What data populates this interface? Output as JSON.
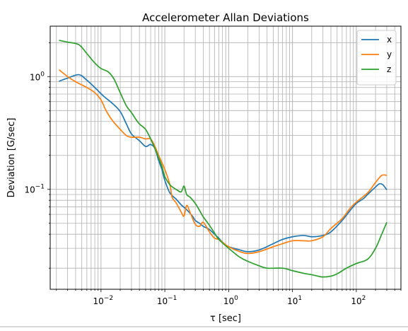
{
  "chart_data": {
    "type": "line",
    "title": "Accelerometer Allan Deviations",
    "xlabel": "τ [sec]",
    "ylabel": "Deviation [G/sec]",
    "xscale": "log",
    "yscale": "log",
    "xlim": [
      0.0016,
      500
    ],
    "ylim": [
      0.013,
      2.8
    ],
    "x_ticks": [
      {
        "value": 0.01,
        "base": "10",
        "exp": "−2"
      },
      {
        "value": 0.1,
        "base": "10",
        "exp": "−1"
      },
      {
        "value": 1,
        "base": "10",
        "exp": "0"
      },
      {
        "value": 10,
        "base": "10",
        "exp": "1"
      },
      {
        "value": 100,
        "base": "10",
        "exp": "2"
      }
    ],
    "y_ticks": [
      {
        "value": 0.1,
        "base": "10",
        "exp": "−1"
      },
      {
        "value": 1,
        "base": "10",
        "exp": "0"
      }
    ],
    "grid": true,
    "legend_position": "top-right",
    "series": [
      {
        "name": "x",
        "color": "#1f77b4",
        "points": [
          [
            0.0022,
            0.91
          ],
          [
            0.003,
            0.97
          ],
          [
            0.0045,
            1.04
          ],
          [
            0.006,
            0.93
          ],
          [
            0.008,
            0.8
          ],
          [
            0.011,
            0.67
          ],
          [
            0.015,
            0.58
          ],
          [
            0.02,
            0.49
          ],
          [
            0.025,
            0.38
          ],
          [
            0.03,
            0.31
          ],
          [
            0.04,
            0.27
          ],
          [
            0.05,
            0.24
          ],
          [
            0.06,
            0.25
          ],
          [
            0.07,
            0.23
          ],
          [
            0.08,
            0.18
          ],
          [
            0.09,
            0.15
          ],
          [
            0.1,
            0.12
          ],
          [
            0.12,
            0.093
          ],
          [
            0.15,
            0.082
          ],
          [
            0.18,
            0.073
          ],
          [
            0.22,
            0.066
          ],
          [
            0.27,
            0.058
          ],
          [
            0.3,
            0.053
          ],
          [
            0.35,
            0.05
          ],
          [
            0.4,
            0.047
          ],
          [
            0.5,
            0.044
          ],
          [
            0.6,
            0.04
          ],
          [
            0.7,
            0.037
          ],
          [
            0.8,
            0.034
          ],
          [
            1,
            0.031
          ],
          [
            1.5,
            0.029
          ],
          [
            2,
            0.028
          ],
          [
            3,
            0.029
          ],
          [
            5,
            0.033
          ],
          [
            7,
            0.036
          ],
          [
            10,
            0.038
          ],
          [
            15,
            0.039
          ],
          [
            20,
            0.038
          ],
          [
            30,
            0.039
          ],
          [
            40,
            0.042
          ],
          [
            60,
            0.053
          ],
          [
            80,
            0.065
          ],
          [
            100,
            0.075
          ],
          [
            130,
            0.083
          ],
          [
            150,
            0.09
          ],
          [
            200,
            0.105
          ],
          [
            230,
            0.112
          ],
          [
            260,
            0.11
          ],
          [
            300,
            0.099
          ]
        ]
      },
      {
        "name": "y",
        "color": "#ff7f0e",
        "points": [
          [
            0.0022,
            1.15
          ],
          [
            0.003,
            1.0
          ],
          [
            0.004,
            0.9
          ],
          [
            0.006,
            0.8
          ],
          [
            0.008,
            0.72
          ],
          [
            0.01,
            0.62
          ],
          [
            0.012,
            0.5
          ],
          [
            0.015,
            0.41
          ],
          [
            0.02,
            0.34
          ],
          [
            0.025,
            0.3
          ],
          [
            0.03,
            0.29
          ],
          [
            0.04,
            0.29
          ],
          [
            0.05,
            0.28
          ],
          [
            0.06,
            0.28
          ],
          [
            0.07,
            0.24
          ],
          [
            0.08,
            0.2
          ],
          [
            0.1,
            0.15
          ],
          [
            0.12,
            0.11
          ],
          [
            0.13,
            0.085
          ],
          [
            0.15,
            0.076
          ],
          [
            0.18,
            0.063
          ],
          [
            0.2,
            0.058
          ],
          [
            0.22,
            0.072
          ],
          [
            0.25,
            0.062
          ],
          [
            0.3,
            0.049
          ],
          [
            0.35,
            0.047
          ],
          [
            0.4,
            0.051
          ],
          [
            0.5,
            0.042
          ],
          [
            0.6,
            0.037
          ],
          [
            0.7,
            0.036
          ],
          [
            0.8,
            0.034
          ],
          [
            1,
            0.031
          ],
          [
            1.5,
            0.028
          ],
          [
            2,
            0.027
          ],
          [
            3,
            0.028
          ],
          [
            5,
            0.031
          ],
          [
            7,
            0.033
          ],
          [
            10,
            0.035
          ],
          [
            15,
            0.035
          ],
          [
            20,
            0.035
          ],
          [
            30,
            0.038
          ],
          [
            40,
            0.045
          ],
          [
            60,
            0.055
          ],
          [
            80,
            0.068
          ],
          [
            100,
            0.077
          ],
          [
            150,
            0.093
          ],
          [
            200,
            0.115
          ],
          [
            250,
            0.133
          ],
          [
            300,
            0.133
          ]
        ]
      },
      {
        "name": "z",
        "color": "#2ca02c",
        "points": [
          [
            0.0022,
            2.1
          ],
          [
            0.003,
            2.02
          ],
          [
            0.0045,
            1.92
          ],
          [
            0.006,
            1.6
          ],
          [
            0.008,
            1.32
          ],
          [
            0.01,
            1.18
          ],
          [
            0.013,
            1.1
          ],
          [
            0.016,
            0.95
          ],
          [
            0.02,
            0.72
          ],
          [
            0.025,
            0.55
          ],
          [
            0.03,
            0.48
          ],
          [
            0.035,
            0.42
          ],
          [
            0.04,
            0.38
          ],
          [
            0.05,
            0.34
          ],
          [
            0.06,
            0.28
          ],
          [
            0.07,
            0.23
          ],
          [
            0.08,
            0.19
          ],
          [
            0.09,
            0.16
          ],
          [
            0.1,
            0.13
          ],
          [
            0.12,
            0.11
          ],
          [
            0.15,
            0.1
          ],
          [
            0.18,
            0.095
          ],
          [
            0.2,
            0.107
          ],
          [
            0.22,
            0.09
          ],
          [
            0.25,
            0.085
          ],
          [
            0.3,
            0.075
          ],
          [
            0.35,
            0.065
          ],
          [
            0.4,
            0.057
          ],
          [
            0.5,
            0.048
          ],
          [
            0.6,
            0.041
          ],
          [
            0.7,
            0.036
          ],
          [
            1,
            0.03
          ],
          [
            1.5,
            0.025
          ],
          [
            2,
            0.023
          ],
          [
            3,
            0.021
          ],
          [
            4,
            0.02
          ],
          [
            7,
            0.02
          ],
          [
            10,
            0.019
          ],
          [
            15,
            0.018
          ],
          [
            20,
            0.0175
          ],
          [
            25,
            0.017
          ],
          [
            30,
            0.0167
          ],
          [
            40,
            0.017
          ],
          [
            50,
            0.0178
          ],
          [
            70,
            0.02
          ],
          [
            100,
            0.022
          ],
          [
            150,
            0.024
          ],
          [
            200,
            0.03
          ],
          [
            250,
            0.04
          ],
          [
            300,
            0.051
          ]
        ]
      }
    ]
  }
}
